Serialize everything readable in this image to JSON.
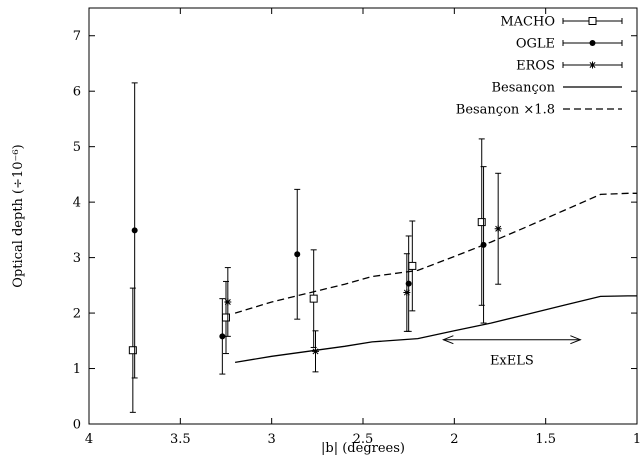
{
  "chart_data": {
    "type": "scatter",
    "title": "",
    "xlabel": "|b| (degrees)",
    "ylabel": "Optical depth (÷10⁻⁶)",
    "xlim": [
      4,
      1
    ],
    "ylim": [
      0,
      7.5
    ],
    "x_reversed": true,
    "x_ticks": [
      "4",
      "3.5",
      "3",
      "2.5",
      "2",
      "1.5",
      "1"
    ],
    "y_ticks": [
      "0",
      "1",
      "2",
      "3",
      "4",
      "5",
      "6",
      "7"
    ],
    "grid": false,
    "legend_position": "top-right",
    "series": [
      {
        "name": "MACHO",
        "kind": "errorbar",
        "marker": "open-square",
        "points": [
          {
            "x": 3.76,
            "y": 1.33,
            "err": 1.12
          },
          {
            "x": 3.25,
            "y": 1.92,
            "err": 0.65
          },
          {
            "x": 2.77,
            "y": 2.26,
            "err": 0.88
          },
          {
            "x": 2.23,
            "y": 2.85,
            "err": 0.81
          },
          {
            "x": 1.85,
            "y": 3.64,
            "err": 1.5
          }
        ]
      },
      {
        "name": "OGLE",
        "kind": "errorbar",
        "marker": "filled-circle",
        "points": [
          {
            "x": 3.75,
            "y": 3.49,
            "err": 2.66
          },
          {
            "x": 3.27,
            "y": 1.58,
            "err": 0.68
          },
          {
            "x": 2.86,
            "y": 3.06,
            "err": 1.17
          },
          {
            "x": 2.25,
            "y": 2.53,
            "err": 0.86
          },
          {
            "x": 1.84,
            "y": 3.23,
            "err": 1.41
          }
        ]
      },
      {
        "name": "EROS",
        "kind": "errorbar",
        "marker": "star",
        "points": [
          {
            "x": 3.24,
            "y": 2.2,
            "err": 0.62
          },
          {
            "x": 2.76,
            "y": 1.31,
            "err": 0.37
          },
          {
            "x": 2.26,
            "y": 2.37,
            "err": 0.7
          },
          {
            "x": 1.76,
            "y": 3.52,
            "err": 1.0
          }
        ]
      },
      {
        "name": "Besançon",
        "kind": "line",
        "dash": "solid",
        "x": [
          3.2,
          3.0,
          2.8,
          2.6,
          2.45,
          2.2,
          2.0,
          1.8,
          1.6,
          1.4,
          1.2,
          1.05,
          1.0
        ],
        "y": [
          1.11,
          1.22,
          1.31,
          1.4,
          1.48,
          1.54,
          1.68,
          1.82,
          1.98,
          2.14,
          2.3,
          2.31,
          2.31
        ]
      },
      {
        "name": "Besançon ×1.8",
        "kind": "line",
        "dash": "dashed",
        "x": [
          3.2,
          3.0,
          2.8,
          2.6,
          2.45,
          2.2,
          2.0,
          1.8,
          1.6,
          1.4,
          1.2,
          1.05,
          1.0
        ],
        "y": [
          2.0,
          2.2,
          2.36,
          2.52,
          2.66,
          2.77,
          3.02,
          3.28,
          3.56,
          3.85,
          4.14,
          4.16,
          4.16
        ]
      }
    ],
    "annotations": [
      {
        "text": "ExELS",
        "x_from": 2.06,
        "x_to": 1.31,
        "y": 1.52,
        "arrow": "double"
      }
    ]
  }
}
